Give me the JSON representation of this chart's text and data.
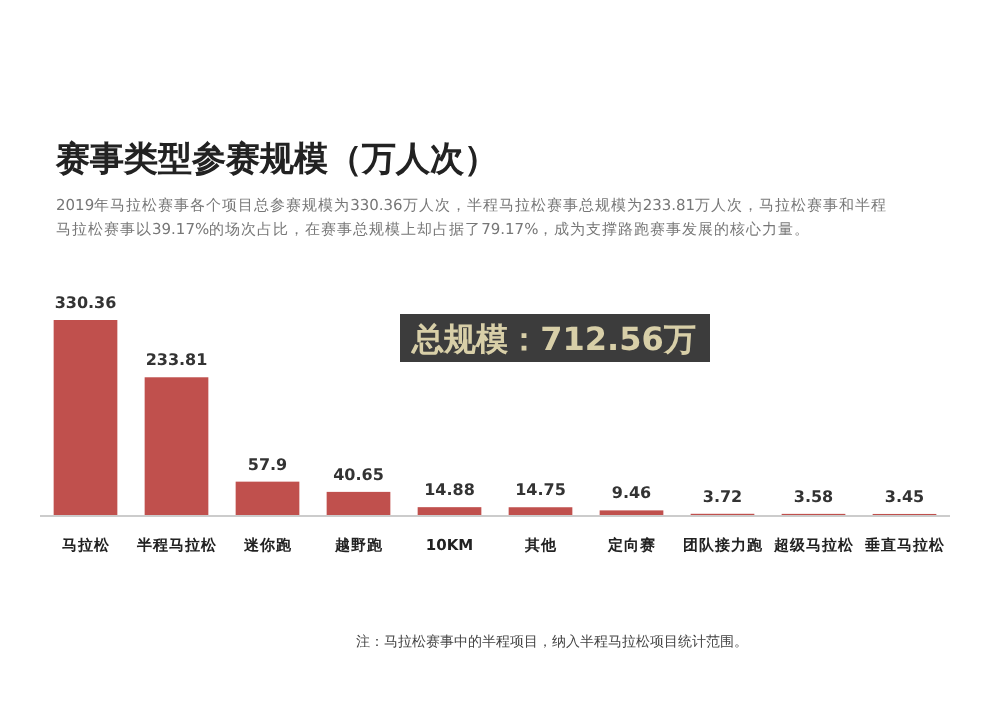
{
  "chart_data": {
    "type": "bar",
    "title": "赛事类型参赛规模（万人次）",
    "subtitle": "2019年马拉松赛事各个项目总参赛规模为330.36万人次，半程马拉松赛事总规模为233.81万人次，马拉松赛事和半程马拉松赛事以39.17%的场次占比，在赛事总规模上却占据了79.17%，成为支撑路跑赛事发展的核心力量。",
    "categories": [
      "马拉松",
      "半程马拉松",
      "迷你跑",
      "越野跑",
      "10KM",
      "其他",
      "定向赛",
      "团队接力跑",
      "超级马拉松",
      "垂直马拉松"
    ],
    "values": [
      330.36,
      233.81,
      57.9,
      40.65,
      14.88,
      14.75,
      9.46,
      3.72,
      3.58,
      3.45
    ],
    "color": "#c0504d",
    "data_labels": true,
    "annotations": [
      "总规模：712.56万",
      "注：马拉松赛事中的半程项目，纳入半程马拉松项目统计范围。"
    ]
  }
}
